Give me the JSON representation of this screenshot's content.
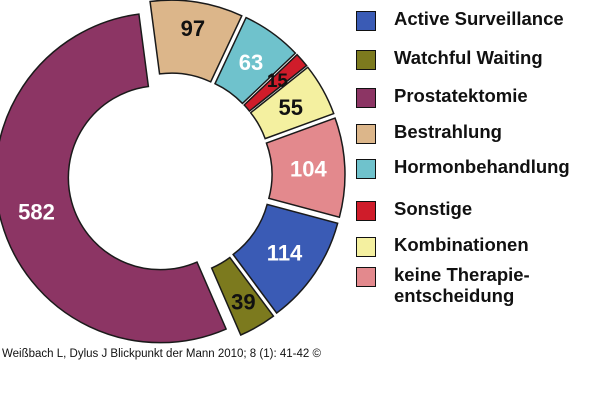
{
  "chart_data": {
    "type": "pie",
    "style": "exploded-donut",
    "title": "",
    "categories": [
      "Active Surveillance",
      "Watchful Waiting",
      "Prostatektomie",
      "Bestrahlung",
      "Hormonbehandlung",
      "Sonstige",
      "Kombinationen",
      "keine Therapie-\nentscheidung"
    ],
    "series": [
      {
        "values": [
          114,
          39,
          582,
          97,
          63,
          15,
          55,
          104
        ],
        "colors": [
          "#3a5bb5",
          "#7c7a1e",
          "#8c3564",
          "#dcb68a",
          "#6fc2cc",
          "#cf1c2a",
          "#f4f0a0",
          "#e3898d"
        ],
        "data_labels": [
          "114",
          "39",
          "582",
          "97",
          "63",
          "15",
          "55",
          "104"
        ],
        "label_colors": [
          "#ffffff",
          "#111111",
          "#ffffff",
          "#111111",
          "#ffffff",
          "#111111",
          "#111111",
          "#ffffff"
        ]
      }
    ],
    "legend_position": "right"
  },
  "citation": "Weißbach L, Dylus J Blickpunkt der Mann 2010; 8 (1): 41-42 ©"
}
